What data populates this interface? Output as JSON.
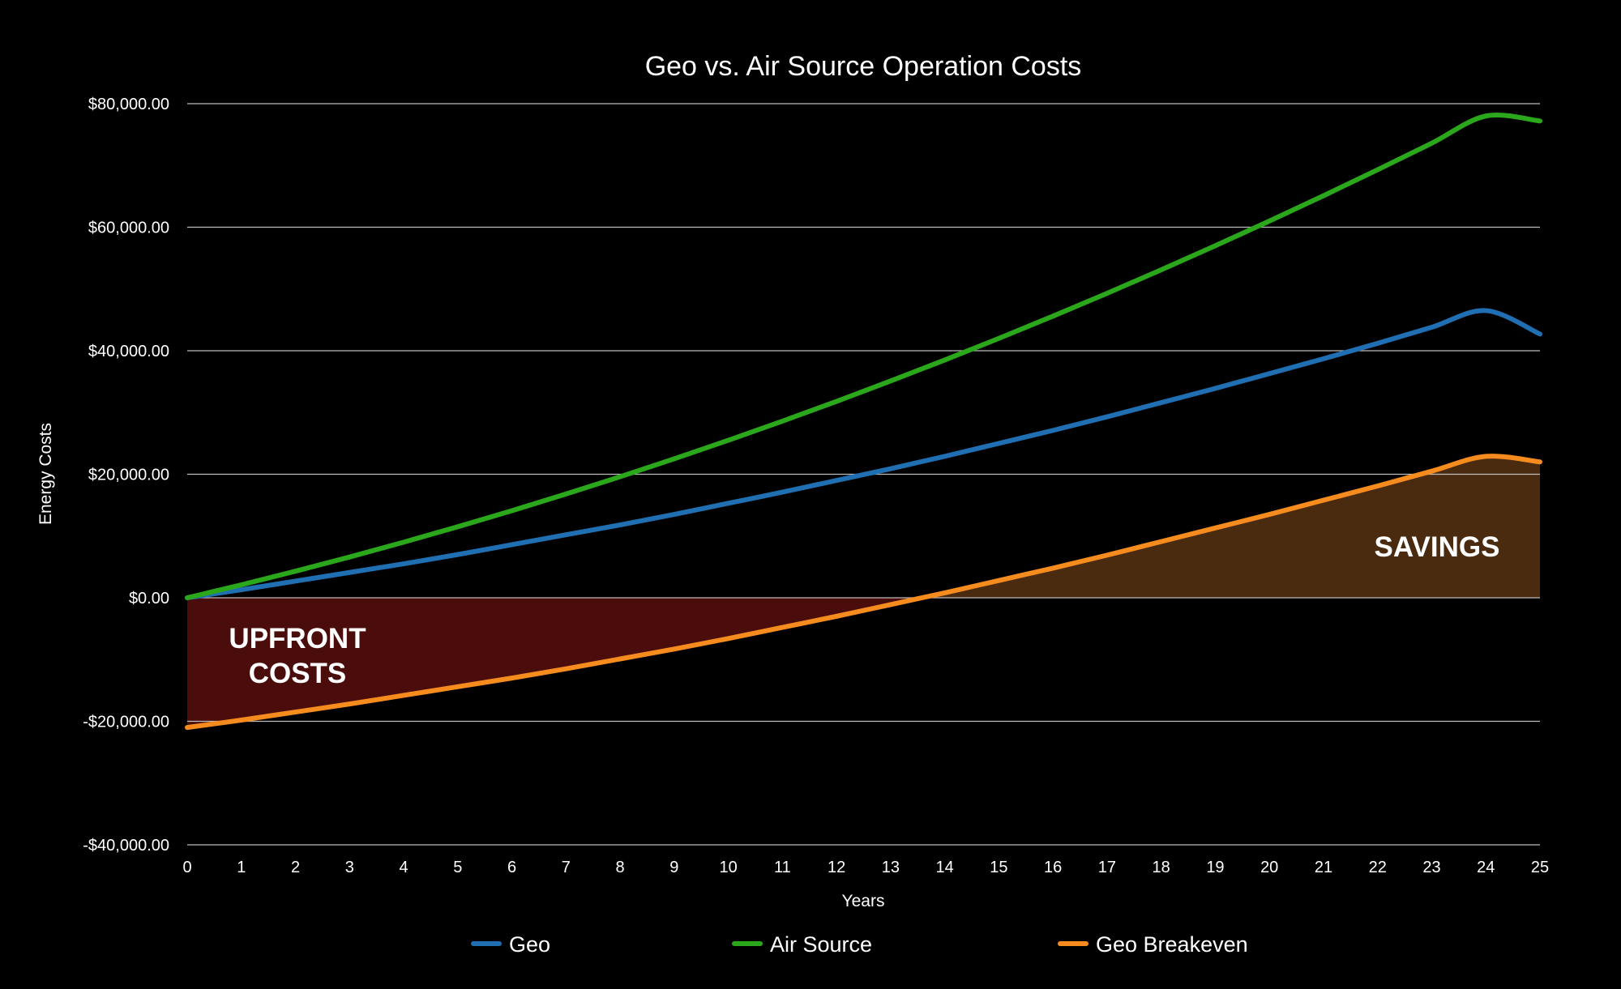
{
  "chart_data": {
    "type": "line",
    "title": "Geo vs. Air Source Operation Costs",
    "xlabel": "Years",
    "ylabel": "Energy Costs",
    "x": [
      0,
      1,
      2,
      3,
      4,
      5,
      6,
      7,
      8,
      9,
      10,
      11,
      12,
      13,
      14,
      15,
      16,
      17,
      18,
      19,
      20,
      21,
      22,
      23,
      24,
      25
    ],
    "xlim": [
      0,
      25
    ],
    "ylim": [
      -40000,
      80000
    ],
    "y_ticks": [
      80000,
      60000,
      40000,
      20000,
      0,
      -20000,
      -40000
    ],
    "y_tick_labels": [
      "$80,000.00",
      "$60,000.00",
      "$40,000.00",
      "$20,000.00",
      "$0.00",
      "-$20,000.00",
      "-$40,000.00"
    ],
    "grid": "horizontal",
    "legend_position": "bottom",
    "series": [
      {
        "name": "Geo",
        "color": "#1f6fb2",
        "values": [
          0,
          1300,
          2700,
          4100,
          5500,
          7000,
          8600,
          10200,
          11800,
          13500,
          15300,
          17100,
          19000,
          20900,
          22900,
          25000,
          27100,
          29300,
          31600,
          33900,
          36300,
          38700,
          41200,
          43800,
          46500,
          42700
        ]
      },
      {
        "name": "Air Source",
        "color": "#2aa71a",
        "values": [
          0,
          2100,
          4300,
          6600,
          9000,
          11500,
          14100,
          16800,
          19600,
          22500,
          25500,
          28600,
          31800,
          35100,
          38500,
          42000,
          45600,
          49300,
          53100,
          57000,
          61000,
          65100,
          69300,
          73600,
          78000,
          77200
        ]
      },
      {
        "name": "Geo Breakeven",
        "color": "#f68b1e",
        "values": [
          -21000,
          -19800,
          -18500,
          -17200,
          -15800,
          -14400,
          -13000,
          -11500,
          -9900,
          -8300,
          -6600,
          -4800,
          -3000,
          -1100,
          800,
          2800,
          4800,
          6900,
          9100,
          11300,
          13500,
          15800,
          18100,
          20500,
          22900,
          22000
        ]
      }
    ],
    "fills": [
      {
        "label": "UPFRONT\nCOSTS",
        "color": "#4a0d0b",
        "region": "negative"
      },
      {
        "label": "SAVINGS",
        "color": "#4a2b10",
        "region": "positive"
      }
    ],
    "annotations": {
      "upfront_line1": "UPFRONT",
      "upfront_line2": "COSTS",
      "savings": "SAVINGS"
    }
  }
}
